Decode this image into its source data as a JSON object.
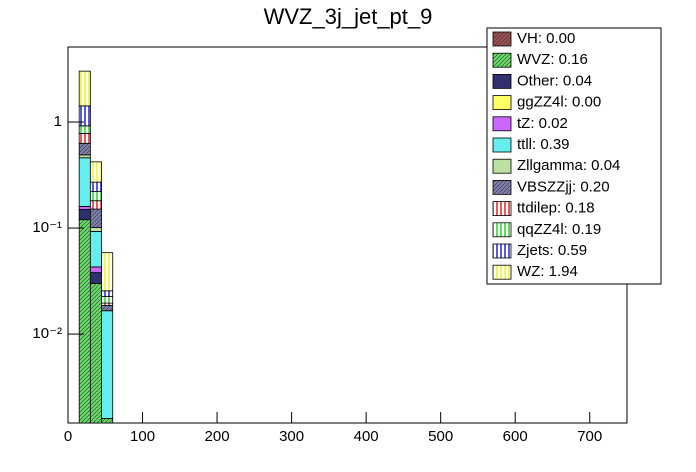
{
  "chart_data": {
    "type": "stacked_histogram",
    "title": "WVZ_3j_jet_pt_9",
    "bins": [
      15,
      30,
      45,
      60
    ],
    "xlim": [
      0,
      750
    ],
    "xticks": [
      0,
      100,
      200,
      300,
      400,
      500,
      600,
      700
    ],
    "ylim": [
      0.00145,
      5.1
    ],
    "log_y": true,
    "yticks": [
      {
        "value": 0.01,
        "label": "10⁻²"
      },
      {
        "value": 0.1,
        "label": "10⁻¹"
      },
      1
    ],
    "series": [
      {
        "name": "VH: 0.00",
        "color": "#a05050",
        "pattern": "diagonal",
        "values": [
          0,
          0,
          0
        ]
      },
      {
        "name": "WVZ: 0.16",
        "color": "#66dd66",
        "pattern": "diagonal",
        "values": [
          0.12,
          0.03,
          0.0016
        ]
      },
      {
        "name": "Other: 0.04",
        "color": "#303080",
        "pattern": "diagonal",
        "values": [
          0.03,
          0.008,
          0
        ]
      },
      {
        "name": "ggZZ4l: 0.00",
        "color": "#ffff66",
        "pattern": "solid",
        "values": [
          0,
          0,
          0
        ]
      },
      {
        "name": "tZ: 0.02",
        "color": "#cc66ff",
        "pattern": "solid",
        "values": [
          0.01,
          0.005,
          0
        ]
      },
      {
        "name": "ttll: 0.39",
        "color": "#66eeee",
        "pattern": "solid",
        "values": [
          0.3,
          0.05,
          0.015
        ]
      },
      {
        "name": "Zllgamma: 0.04",
        "color": "#bbe0a0",
        "pattern": "solid",
        "values": [
          0.03,
          0.008,
          0
        ]
      },
      {
        "name": "VBSZZjj: 0.20",
        "color": "#8080b0",
        "pattern": "diagonal",
        "values": [
          0.14,
          0.05,
          0.002
        ]
      },
      {
        "name": "ttdilep: 0.18",
        "color": "#dd0000",
        "pattern": "vertical",
        "values": [
          0.15,
          0.03,
          0.001
        ]
      },
      {
        "name": "qqZZ4l: 0.19",
        "color": "#00cc00",
        "pattern": "vertical",
        "values": [
          0.14,
          0.04,
          0.003
        ]
      },
      {
        "name": "Zjets: 0.59",
        "color": "#0000cc",
        "pattern": "vertical",
        "values": [
          0.5,
          0.05,
          0.003
        ]
      },
      {
        "name": "WZ: 1.94",
        "color": "#eeee00",
        "pattern": "vertical",
        "values": [
          1.6,
          0.15,
          0.033
        ]
      }
    ]
  }
}
